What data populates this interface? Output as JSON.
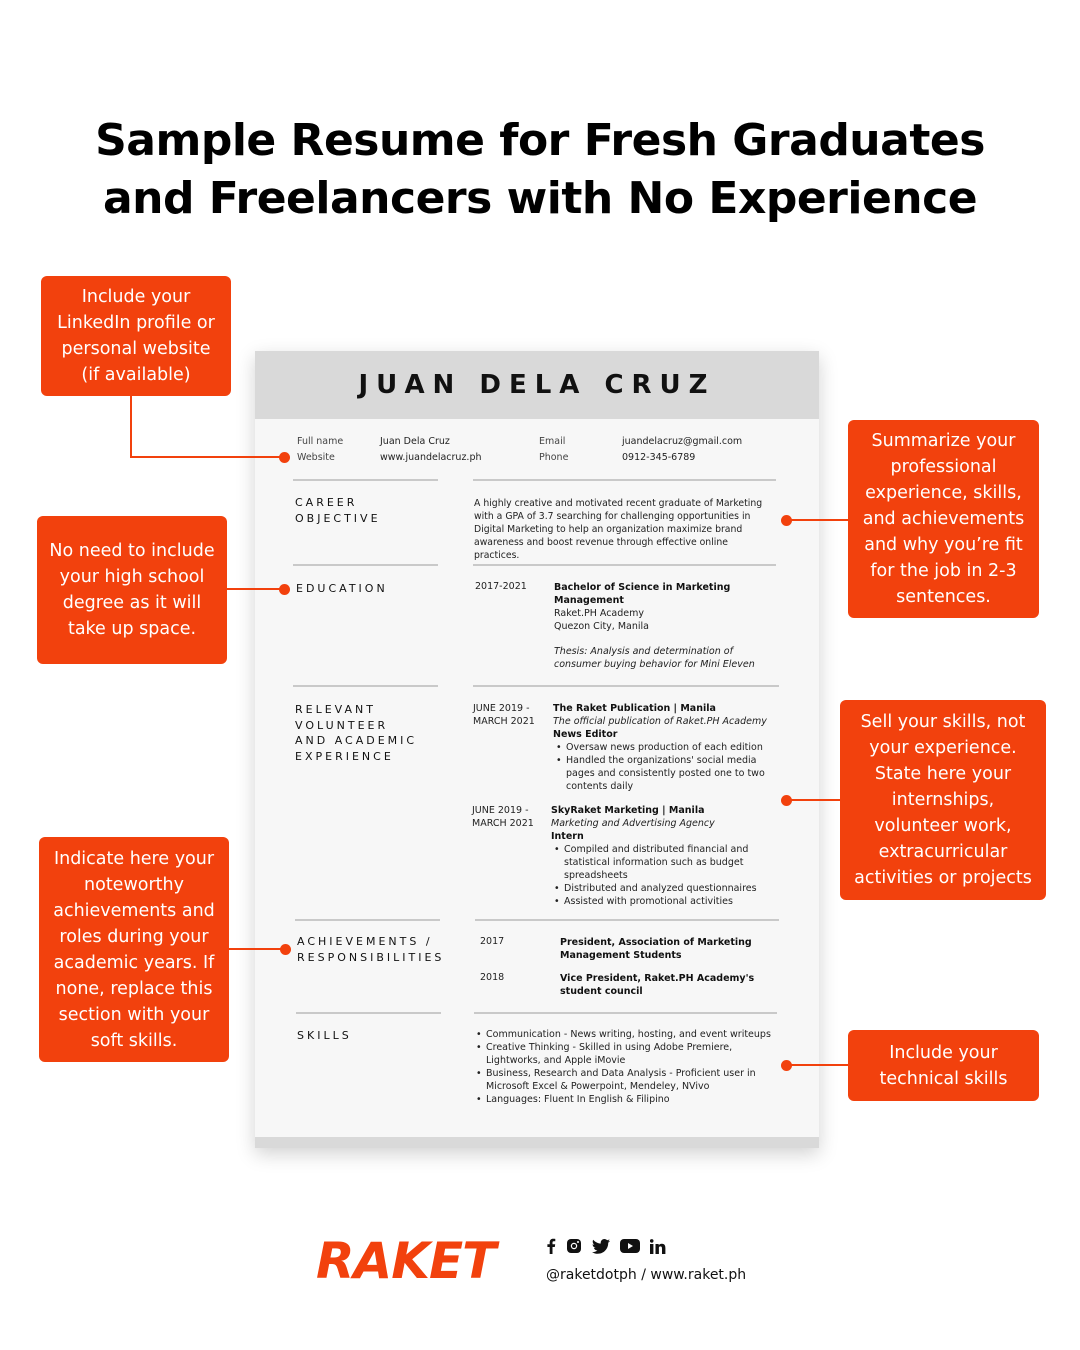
{
  "title": {
    "line1": "Sample Resume for Fresh Graduates",
    "line2": "and Freelancers with No Experience"
  },
  "resume": {
    "name": "JUAN DELA CRUZ",
    "contact": {
      "full_name_label": "Full name",
      "full_name": "Juan Dela Cruz",
      "website_label": "Website",
      "website": "www.juandelacruz.ph",
      "email_label": "Email",
      "email": "juandelacruz@gmail.com",
      "phone_label": "Phone",
      "phone": "0912-345-6789"
    },
    "career": {
      "heading_1": "CAREER",
      "heading_2": "OBJECTIVE",
      "text": "A highly creative and motivated recent graduate of Marketing with a GPA of 3.7 searching for challenging opportunities in Digital Marketing to help an organization maximize brand awareness and boost revenue through effective online practices."
    },
    "education": {
      "heading": "EDUCATION",
      "years": "2017-2021",
      "degree": "Bachelor of Science in Marketing Management",
      "school": "Raket.PH Academy",
      "location": "Quezon City, Manila",
      "thesis": "Thesis: Analysis and determination of consumer buying behavior for Mini Eleven"
    },
    "experience": {
      "heading_1": "RELEVANT",
      "heading_2": "VOLUNTEER",
      "heading_3": "AND ACADEMIC",
      "heading_4": "EXPERIENCE",
      "items": [
        {
          "date_1": "JUNE 2019 -",
          "date_2": "MARCH 2021",
          "org": "The Raket Publication | Manila",
          "desc": "The official publication of Raket.PH Academy",
          "role": "News Editor",
          "bullets": [
            "Oversaw news production of each edition",
            "Handled the organizations' social media pages and consistently posted one to two contents daily"
          ]
        },
        {
          "date_1": "JUNE 2019 -",
          "date_2": "MARCH 2021",
          "org": "SkyRaket Marketing | Manila",
          "desc": "Marketing and Advertising Agency",
          "role": "Intern",
          "bullets": [
            "Compiled and distributed financial and statistical information such as budget spreadsheets",
            "Distributed and analyzed questionnaires",
            "Assisted with promotional activities"
          ]
        }
      ]
    },
    "achievements": {
      "heading_1": "ACHIEVEMENTS /",
      "heading_2": "RESPONSIBILITIES",
      "items": [
        {
          "year": "2017",
          "text": "President, Association of Marketing Management Students"
        },
        {
          "year": "2018",
          "text": "Vice President, Raket.PH Academy's student council"
        }
      ]
    },
    "skills": {
      "heading": "SKILLS",
      "items": [
        "Communication - News writing, hosting, and event writeups",
        "Creative Thinking - Skilled in using Adobe Premiere, Lightworks, and Apple iMovie",
        "Business, Research and Data Analysis - Proficient user in Microsoft Excel & Powerpoint, Mendeley, NVivo",
        "Languages: Fluent In English & Filipino"
      ]
    }
  },
  "callouts": {
    "linkedin": "Include your LinkedIn profile or personal website (if available)",
    "education": "No need to include your high school degree as it will take up space.",
    "achievements": "Indicate here your noteworthy achievements and roles during your academic years. If none, replace this section with your soft skills.",
    "summary": "Summarize your professional experience, skills, and achievements and why you’re fit for the job in 2-3 sentences.",
    "experience": "Sell your skills, not your experience. State here your internships, volunteer work, extracurricular activities or projects",
    "skills": "Include your technical skills"
  },
  "footer": {
    "logo": "RAKET",
    "handle": "@raketdotph  /  www.raket.ph",
    "icons": [
      "facebook-icon",
      "instagram-icon",
      "twitter-icon",
      "youtube-icon",
      "linkedin-icon"
    ]
  },
  "colors": {
    "accent": "#f2410d",
    "resume_bg": "#f7f7f7",
    "resume_band": "#d9d9d9"
  }
}
